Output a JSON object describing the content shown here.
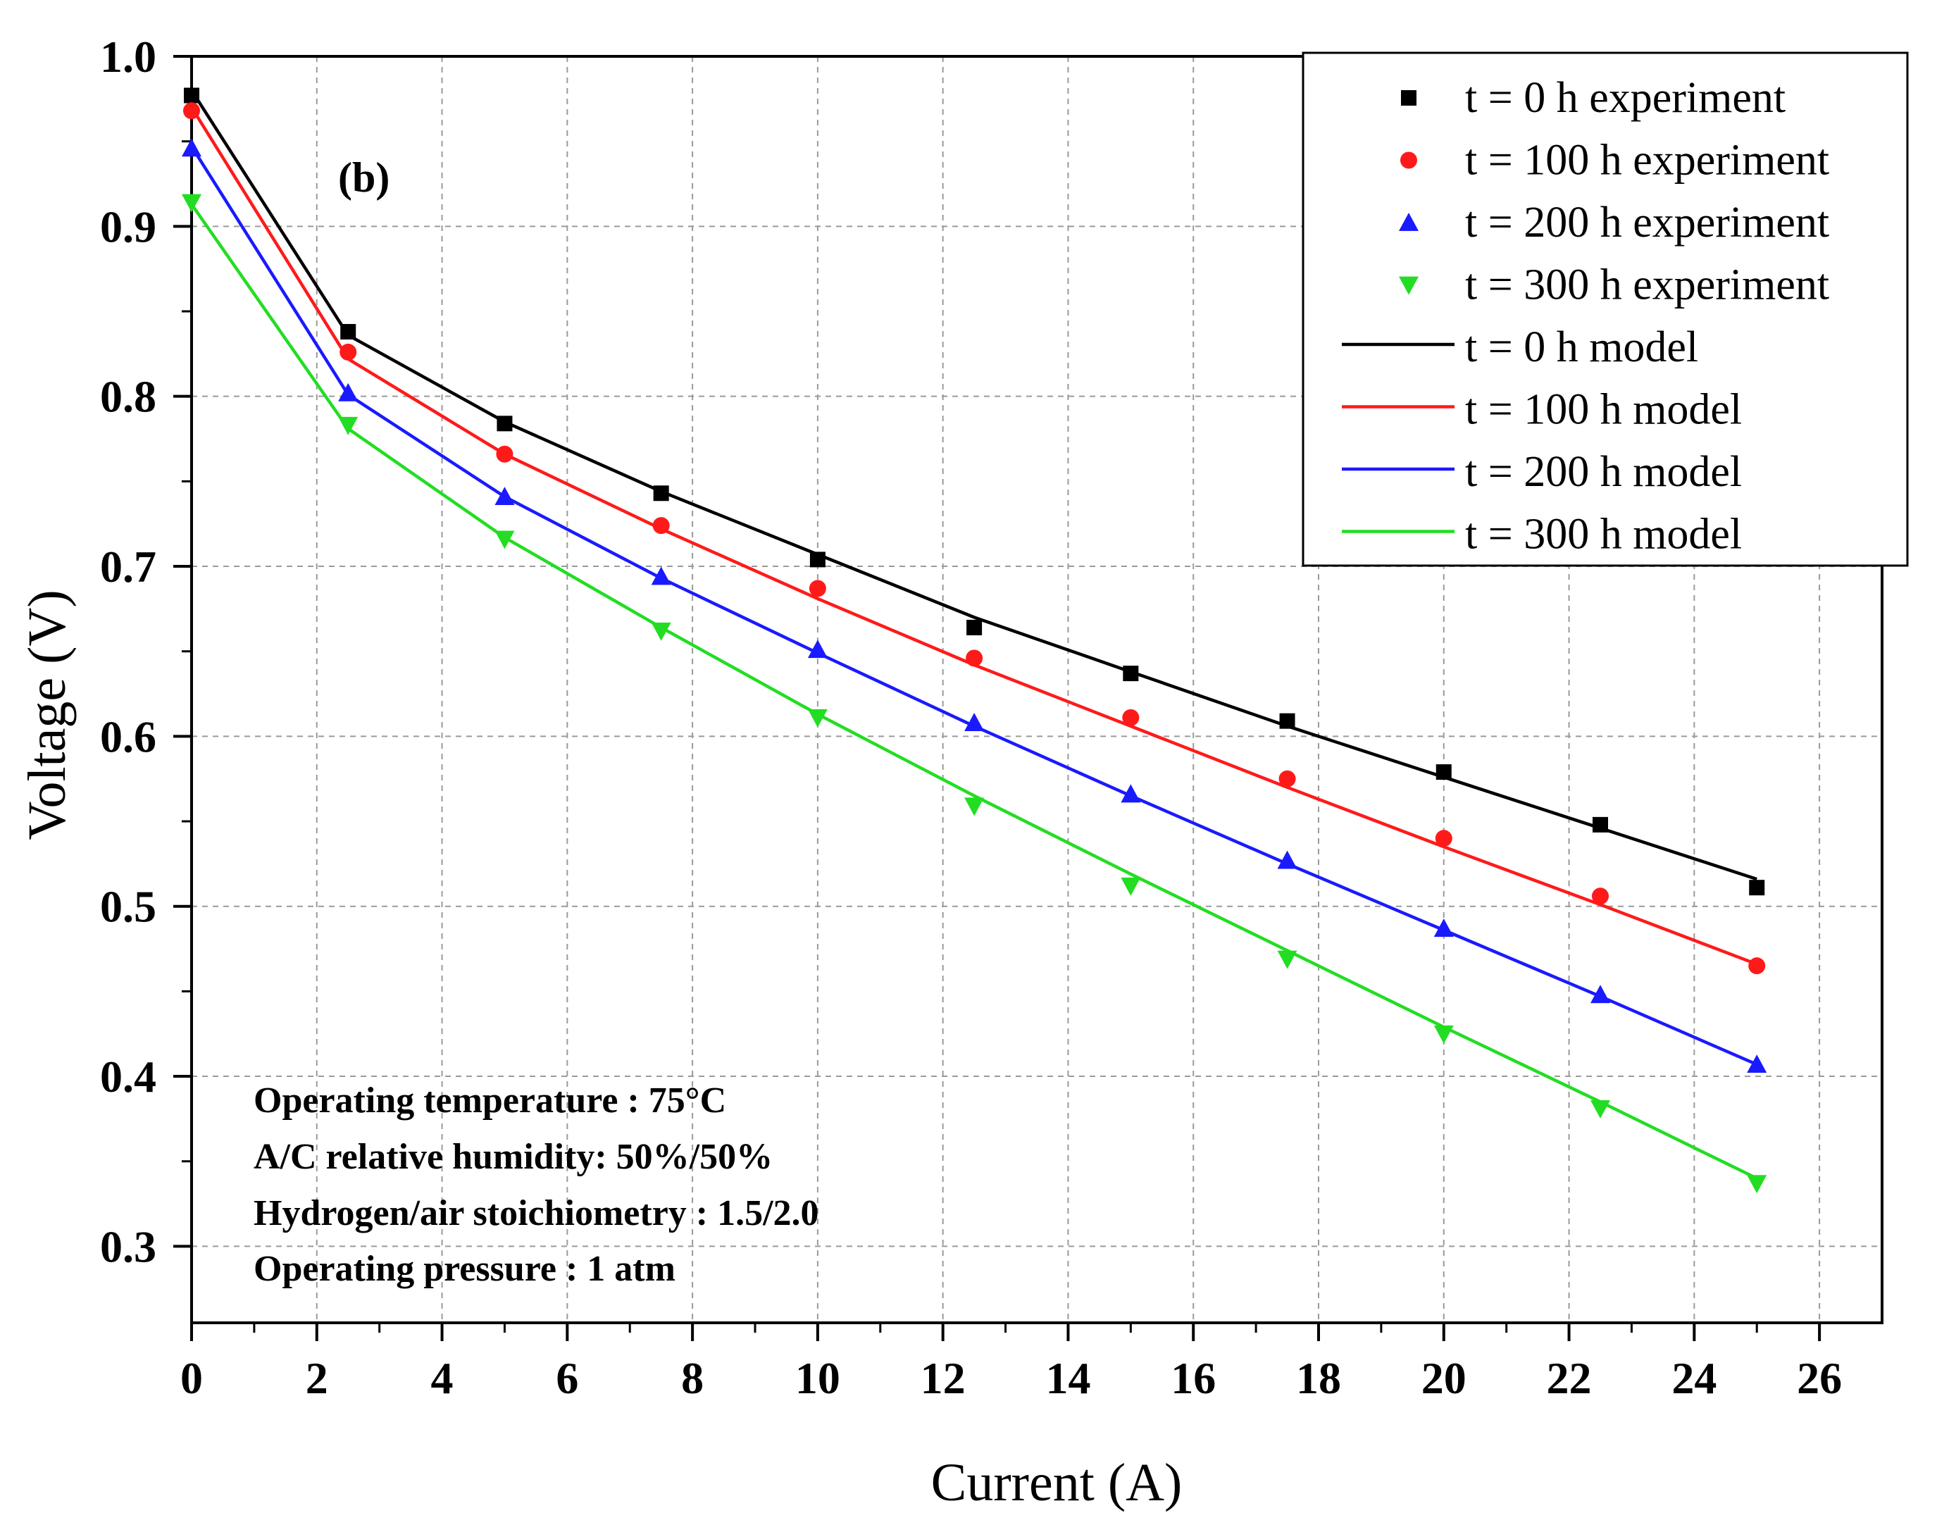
{
  "chart_data": {
    "type": "line",
    "panel_label": "(b)",
    "xlabel": "Current (A)",
    "ylabel": "Voltage (V)",
    "xlim": [
      0,
      27
    ],
    "ylim": [
      0.255,
      1.0
    ],
    "x_ticks": [
      0,
      2,
      4,
      6,
      8,
      10,
      12,
      14,
      16,
      18,
      20,
      22,
      24,
      26
    ],
    "y_ticks": [
      0.3,
      0.4,
      0.5,
      0.6,
      0.7,
      0.8,
      0.9,
      1.0
    ],
    "y_tick_labels": [
      "0.3",
      "0.4",
      "0.5",
      "0.6",
      "0.7",
      "0.8",
      "0.9",
      "1.0"
    ],
    "grid": true,
    "legend_position": "top-right",
    "x": [
      0,
      2.5,
      5,
      7.5,
      10,
      12.5,
      15,
      17.5,
      20,
      22.5,
      25
    ],
    "series": [
      {
        "name": "t = 0 h experiment",
        "kind": "marker",
        "marker": "square",
        "color": "#000000",
        "values": [
          0.977,
          0.838,
          0.784,
          0.743,
          0.704,
          0.664,
          0.637,
          0.609,
          0.579,
          0.548,
          0.511
        ]
      },
      {
        "name": "t = 100 h experiment",
        "kind": "marker",
        "marker": "circle",
        "color": "#ff1a1a",
        "values": [
          0.968,
          0.826,
          0.766,
          0.724,
          0.687,
          0.646,
          0.611,
          0.575,
          0.54,
          0.506,
          0.465
        ]
      },
      {
        "name": "t = 200 h experiment",
        "kind": "marker",
        "marker": "triangle-up",
        "color": "#1a1aff",
        "values": [
          0.946,
          0.802,
          0.741,
          0.694,
          0.651,
          0.608,
          0.566,
          0.527,
          0.487,
          0.448,
          0.407
        ]
      },
      {
        "name": "t = 300 h experiment",
        "kind": "marker",
        "marker": "triangle-down",
        "color": "#22dd22",
        "values": [
          0.914,
          0.783,
          0.716,
          0.662,
          0.611,
          0.559,
          0.512,
          0.469,
          0.425,
          0.381,
          0.337
        ]
      },
      {
        "name": "t = 0 h model",
        "kind": "line",
        "color": "#000000",
        "values": [
          0.98,
          0.836,
          0.785,
          0.744,
          0.707,
          0.67,
          0.638,
          0.606,
          0.576,
          0.546,
          0.516
        ]
      },
      {
        "name": "t = 100 h model",
        "kind": "line",
        "color": "#ff1a1a",
        "values": [
          0.97,
          0.822,
          0.766,
          0.722,
          0.681,
          0.642,
          0.606,
          0.57,
          0.535,
          0.501,
          0.466
        ]
      },
      {
        "name": "t = 200 h model",
        "kind": "line",
        "color": "#1a1aff",
        "values": [
          0.947,
          0.801,
          0.741,
          0.693,
          0.649,
          0.606,
          0.565,
          0.525,
          0.486,
          0.447,
          0.407
        ]
      },
      {
        "name": "t = 300 h model",
        "kind": "line",
        "color": "#22dd22",
        "values": [
          0.913,
          0.781,
          0.717,
          0.664,
          0.613,
          0.565,
          0.519,
          0.474,
          0.429,
          0.385,
          0.34
        ]
      }
    ],
    "annotations": [
      "Operating temperature : 75°C",
      "A/C relative humidity: 50%/50%",
      "Hydrogen/air stoichiometry : 1.5/2.0",
      "Operating pressure : 1 atm"
    ]
  }
}
